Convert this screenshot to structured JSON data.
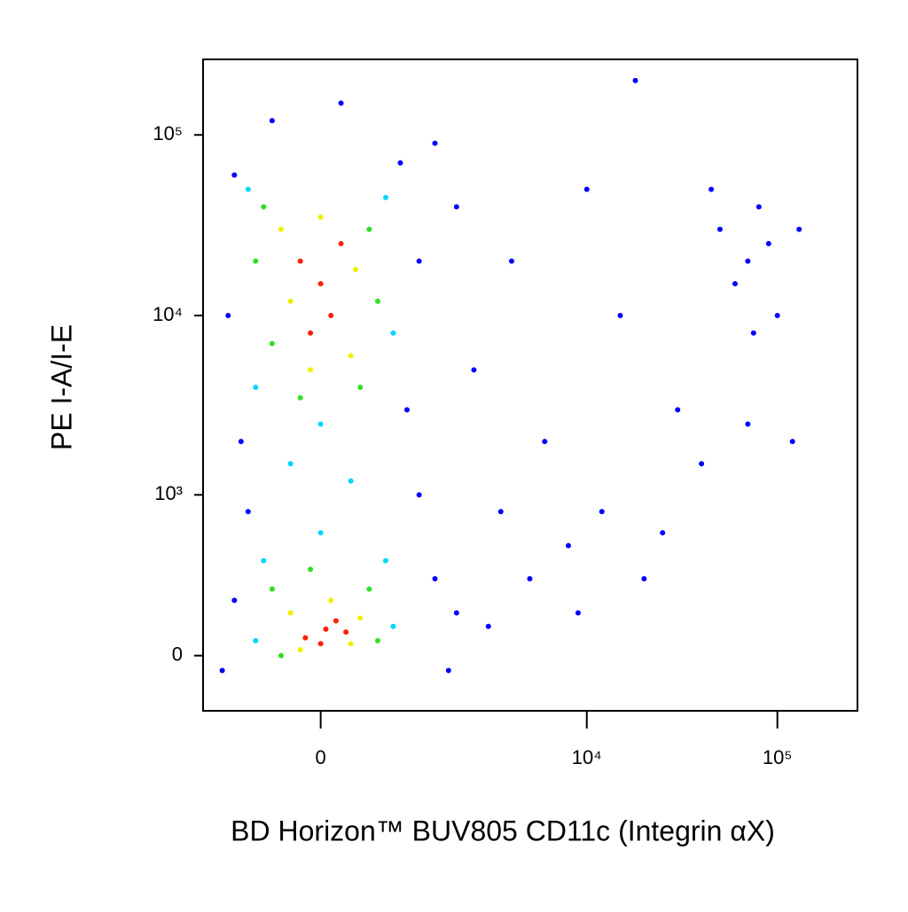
{
  "chart_data": {
    "type": "scatter",
    "xlabel": "BD Horizon™ BUV805 CD11c (Integrin αX)",
    "ylabel": "PE I-A/I-E",
    "xscale": "biexponential",
    "yscale": "biexponential",
    "xlim": [
      -1570,
      263000
    ],
    "ylim": [
      -200,
      262000
    ],
    "xticks": [
      0,
      {
        "value": 10000,
        "label": "10⁴"
      },
      {
        "value": 100000,
        "label": "10⁵"
      }
    ],
    "yticks": [
      0,
      {
        "value": 1000,
        "label": "10³"
      },
      {
        "value": 10000,
        "label": "10⁴"
      },
      {
        "value": 100000,
        "label": "10⁵"
      }
    ],
    "series": [
      {
        "color": "#0000ff",
        "x": [
          -1000,
          900,
          -1100,
          1200,
          -900,
          1000,
          -800,
          1200,
          -1000,
          1500,
          2000,
          3000,
          2500,
          4000,
          6000,
          8000,
          12000,
          20000,
          15000,
          30000,
          50000,
          70000,
          80000,
          60000,
          90000,
          100000,
          45000,
          75000,
          3500,
          5000,
          2000,
          1500,
          -500,
          200,
          10000,
          25000,
          40000,
          9000,
          1800,
          -1200,
          130000,
          120000,
          70000,
          18000
        ],
        "values": [
          60000,
          70000,
          10000,
          20000,
          2000,
          3000,
          800,
          1000,
          200,
          300,
          150,
          100,
          5000,
          20000,
          2000,
          500,
          800,
          300,
          10000,
          3000,
          30000,
          20000,
          40000,
          15000,
          25000,
          10000,
          50000,
          8000,
          800,
          300,
          40000,
          90000,
          120000,
          150000,
          50000,
          600,
          1500,
          150,
          -50,
          -50,
          30000,
          2000,
          2500,
          200000
        ]
      },
      {
        "color": "#00d8ff",
        "x": [
          -800,
          700,
          -700,
          800,
          0,
          -300,
          300,
          -600,
          700,
          800,
          -700,
          0
        ],
        "values": [
          50000,
          45000,
          4000,
          8000,
          2500,
          1500,
          1200,
          400,
          400,
          100,
          50,
          600
        ]
      },
      {
        "color": "#30e020",
        "x": [
          -600,
          500,
          -500,
          400,
          -200,
          600,
          -700,
          -500,
          500,
          -100,
          600,
          -400
        ],
        "values": [
          40000,
          30000,
          7000,
          4000,
          3500,
          12000,
          20000,
          250,
          250,
          350,
          50,
          0
        ]
      },
      {
        "color": "#f0f000",
        "x": [
          -400,
          300,
          -300,
          350,
          0,
          -100,
          -300,
          300,
          100,
          -200,
          400
        ],
        "values": [
          30000,
          6000,
          12000,
          18000,
          35000,
          5000,
          150,
          40,
          200,
          20,
          130
        ]
      },
      {
        "color": "#ff2000",
        "x": [
          0,
          -200,
          100,
          200,
          -100,
          50,
          -150,
          150,
          0,
          250
        ],
        "values": [
          15000,
          20000,
          10000,
          25000,
          8000,
          90,
          60,
          120,
          40,
          80
        ]
      }
    ]
  }
}
